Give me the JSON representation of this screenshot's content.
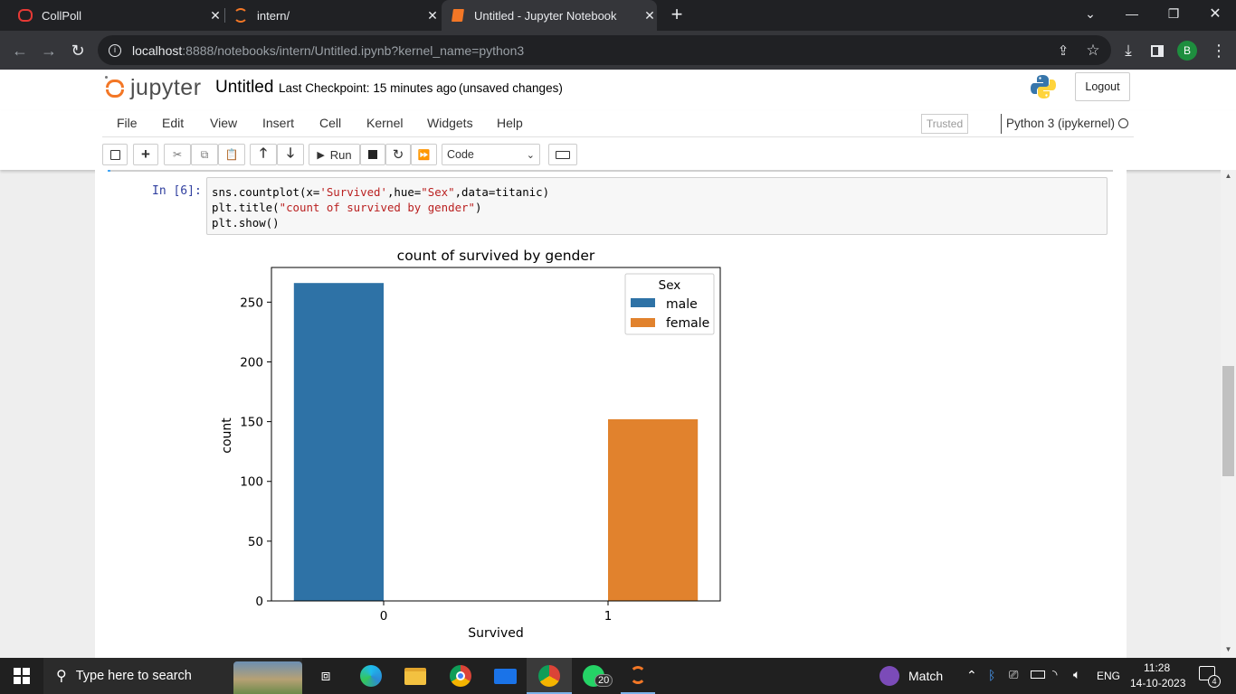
{
  "browser": {
    "tabs": [
      {
        "title": "CollPoll",
        "active": false
      },
      {
        "title": "intern/",
        "active": false
      },
      {
        "title": "Untitled - Jupyter Notebook",
        "active": true
      }
    ],
    "url_host": "localhost",
    "url_rest": ":8888/notebooks/intern/Untitled.ipynb?kernel_name=python3",
    "profile_initial": "B"
  },
  "jupyter": {
    "logo_text": "jupyter",
    "notebook_name": "Untitled",
    "checkpoint_label": "Last Checkpoint:",
    "checkpoint_time": "15 minutes ago",
    "save_status": "(unsaved changes)",
    "logout_label": "Logout",
    "menu": [
      "File",
      "Edit",
      "View",
      "Insert",
      "Cell",
      "Kernel",
      "Widgets",
      "Help"
    ],
    "trusted_label": "Trusted",
    "kernel_label": "Python 3 (ipykernel)",
    "run_label": "Run",
    "cell_type": "Code"
  },
  "cell": {
    "prompt": "In [6]:",
    "code_line1_a": "sns.countplot(x=",
    "code_line1_s1": "'Survived'",
    "code_line1_b": ",hue=",
    "code_line1_s2": "\"Sex\"",
    "code_line1_c": ",data=titanic)",
    "code_line2_a": "plt.title(",
    "code_line2_s": "\"count of survived by gender\"",
    "code_line2_b": ")",
    "code_line3": "plt.show()"
  },
  "chart_data": {
    "type": "bar",
    "title": "count of survived by gender",
    "xlabel": "Survived",
    "ylabel": "count",
    "categories": [
      "0",
      "1"
    ],
    "series": [
      {
        "name": "male",
        "color": "#2e72a6",
        "values": [
          266,
          0
        ]
      },
      {
        "name": "female",
        "color": "#e1822d",
        "values": [
          0,
          152
        ]
      }
    ],
    "yticks": [
      0,
      50,
      100,
      150,
      200,
      250
    ],
    "ylim": [
      0,
      279
    ],
    "legend_title": "Sex",
    "legend_position": "top-right",
    "grid": false
  },
  "taskbar": {
    "search_placeholder": "Type here to search",
    "whatsapp_badge": "20",
    "weather_label": "Match",
    "language": "ENG",
    "time": "11:28",
    "date": "14-10-2023",
    "notification_count": "4"
  }
}
